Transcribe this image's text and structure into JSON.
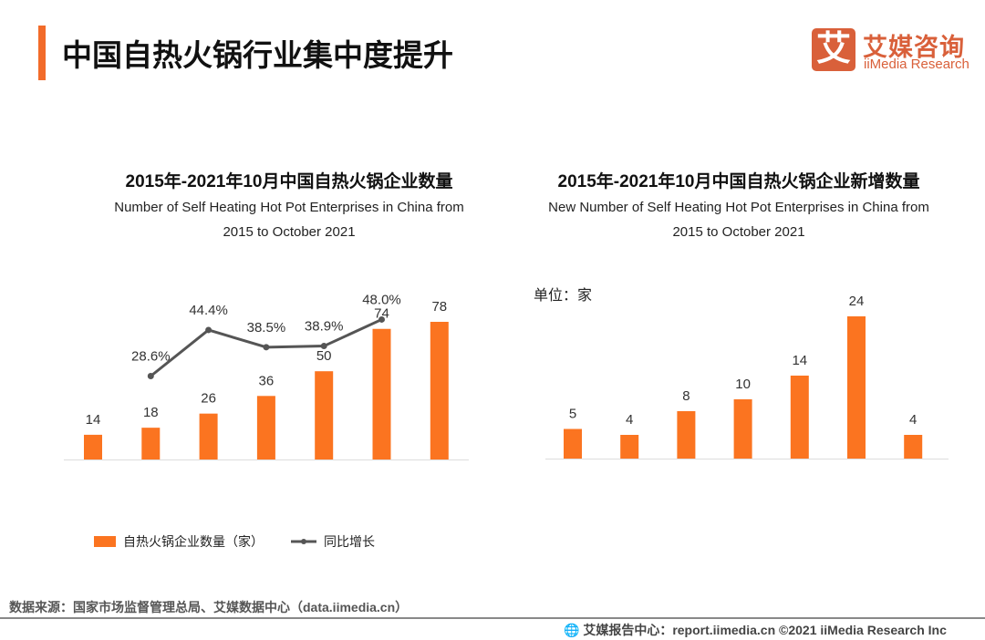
{
  "header": {
    "title": "中国自热火锅行业集中度提升",
    "logo_mark": "艾",
    "logo_cn": "艾媒咨询",
    "logo_en": "iiMedia Research"
  },
  "colors": {
    "accent": "#f26b2a",
    "bar": "#fb7420",
    "line": "#555555"
  },
  "chart_data": [
    {
      "type": "bar+line",
      "title": "2015年-2021年10月中国自热火锅企业数量",
      "subtitle": "Number of Self Heating Hot Pot Enterprises in China from 2015 to October 2021",
      "subtitle_lines": [
        "Number of Self Heating Hot Pot Enterprises in China from",
        "2015 to October 2021"
      ],
      "categories": [
        "",
        "",
        "",
        "",
        "",
        "",
        ""
      ],
      "series": [
        {
          "name": "自热火锅企业数量（家）",
          "type": "bar",
          "values": [
            14,
            18,
            26,
            36,
            50,
            74,
            78
          ],
          "labels": [
            "14",
            "18",
            "26",
            "36",
            "50",
            "74",
            "78"
          ]
        },
        {
          "name": "同比增长",
          "type": "line",
          "values": [
            null,
            28.6,
            44.4,
            38.5,
            38.9,
            48.0,
            null
          ],
          "labels": [
            "",
            "28.6%",
            "44.4%",
            "38.5%",
            "38.9%",
            "48.0%",
            ""
          ]
        }
      ],
      "ylim": [
        0,
        78
      ],
      "y2lim": [
        0,
        47.2
      ],
      "grid": false,
      "legend": "bottom"
    },
    {
      "type": "bar",
      "title": "2015年-2021年10月中国自热火锅企业新增数量",
      "subtitle": "New Number of Self Heating Hot Pot Enterprises in China from 2015 to October 2021",
      "subtitle_lines": [
        "New Number of Self Heating Hot Pot Enterprises in China from",
        "2015 to October 2021"
      ],
      "unit": "单位：家",
      "categories": [
        "",
        "",
        "",
        "",
        "",
        "",
        ""
      ],
      "values": [
        5,
        4,
        8,
        10,
        14,
        24,
        4
      ],
      "labels": [
        "5",
        "4",
        "8",
        "10",
        "14",
        "24",
        "4"
      ],
      "ylim": [
        0,
        24
      ],
      "grid": false
    }
  ],
  "legend": {
    "bar": "自热火锅企业数量（家）",
    "line": "同比增长"
  },
  "source": "数据来源：国家市场监督管理总局、艾媒数据中心（data.iimedia.cn）",
  "footer": "艾媒报告中心：report.iimedia.cn   ©2021  iiMedia Research  Inc"
}
